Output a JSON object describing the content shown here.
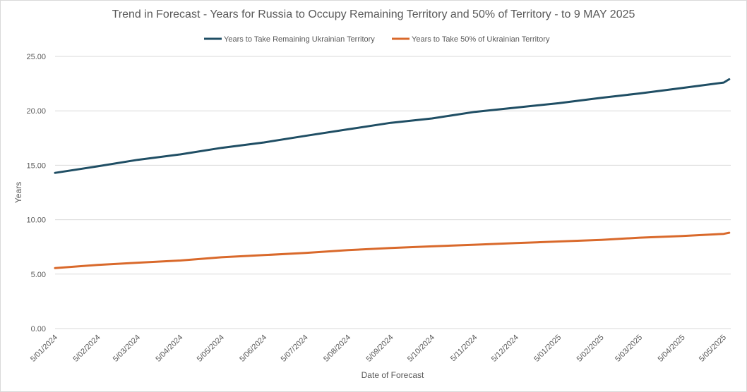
{
  "chart_data": {
    "type": "line",
    "title": "Trend in Forecast - Years for Russia to Occupy Remaining Territory and 50% of Territory - to 9 MAY 2025",
    "xlabel": "Date of Forecast",
    "ylabel": "Years",
    "ylim": [
      0,
      25
    ],
    "yticks": [
      "0.00",
      "5.00",
      "10.00",
      "15.00",
      "20.00",
      "25.00"
    ],
    "grid": "horizontal",
    "legend_position": "top",
    "x_tick_labels": [
      "5/01/2024",
      "5/02/2024",
      "5/03/2024",
      "5/04/2024",
      "5/05/2024",
      "5/06/2024",
      "5/07/2024",
      "5/08/2024",
      "5/09/2024",
      "5/10/2024",
      "5/11/2024",
      "5/12/2024",
      "5/01/2025",
      "5/02/2025",
      "5/03/2025",
      "5/04/2025",
      "5/05/2025"
    ],
    "x": [
      "5/01/2024",
      "5/02/2024",
      "5/03/2024",
      "5/04/2024",
      "5/05/2024",
      "5/06/2024",
      "5/07/2024",
      "5/08/2024",
      "5/09/2024",
      "5/10/2024",
      "5/11/2024",
      "5/12/2024",
      "5/01/2025",
      "5/02/2025",
      "5/03/2025",
      "5/04/2025",
      "5/05/2025",
      "9/05/2025"
    ],
    "series": [
      {
        "name": "Years to Take Remaining Ukrainian Territory",
        "color": "#1f4e64",
        "values": [
          14.3,
          14.9,
          15.5,
          16.0,
          16.6,
          17.1,
          17.7,
          18.3,
          18.9,
          19.3,
          19.9,
          20.3,
          20.7,
          21.2,
          21.6,
          22.1,
          22.6,
          22.9
        ]
      },
      {
        "name": "Years to Take  50% of Ukrainian Territory",
        "color": "#d9692b",
        "values": [
          5.55,
          5.85,
          6.05,
          6.25,
          6.55,
          6.75,
          6.95,
          7.2,
          7.4,
          7.55,
          7.7,
          7.85,
          8.0,
          8.15,
          8.35,
          8.5,
          8.7,
          8.8
        ]
      }
    ]
  }
}
